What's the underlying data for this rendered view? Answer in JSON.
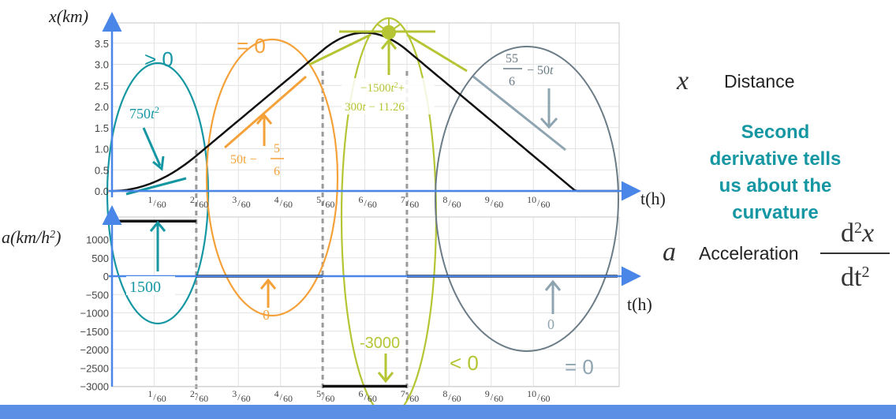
{
  "colors": {
    "axis_blue": "#4a86e8",
    "teal": "#1597a3",
    "orange": "#f5a13a",
    "lime": "#b5c534",
    "slate": "#6b7c86",
    "slate_light": "#8ea4b0",
    "curve": "#111111",
    "grid": "#e3e3e3",
    "dash": "#9a9a9a",
    "bar": "#5b8fe6"
  },
  "chart_data": [
    {
      "type": "line",
      "panel": "top",
      "ylabel": "x(km)",
      "xlabel": "t(h)",
      "ylim": [
        0,
        3.75
      ],
      "xlim": [
        0,
        0.2
      ],
      "y_ticks": [
        "0.0",
        "0.5",
        "1.0",
        "1.5",
        "2.0",
        "2.5",
        "3.0",
        "3.5"
      ],
      "x_ticks": [
        "1/60",
        "2/60",
        "3/60",
        "4/60",
        "5/60",
        "6/60",
        "7/60",
        "8/60",
        "9/60",
        "10/60"
      ],
      "series": [
        {
          "x": [
            0,
            0.005,
            0.01,
            0.0167,
            0.0333,
            0.05,
            0.0667,
            0.0833,
            0.1,
            0.1167,
            0.1333,
            0.15,
            0.1667,
            0.1833,
            0.2
          ],
          "y": [
            0,
            0.019,
            0.075,
            0.208,
            0.833,
            1.667,
            2.5,
            3.333,
            3.75,
            3.333,
            2.5,
            1.667,
            0.833,
            0.417,
            0
          ]
        }
      ],
      "annotations": [
        {
          "text_parts": [
            "750",
            "t",
            "2"
          ],
          "sign": "> 0"
        },
        {
          "text_parts": [
            "50t",
            "−",
            "5",
            "6"
          ],
          "sign": "= 0"
        },
        {
          "text_parts": [
            "−1500",
            "t",
            "2",
            "+",
            "300",
            "t",
            "− 11.26"
          ]
        },
        {
          "text_parts": [
            "55",
            "6",
            "− 50",
            "t"
          ]
        }
      ]
    },
    {
      "type": "line",
      "panel": "bottom",
      "ylabel": "a(km/h2)",
      "xlabel": "t(h)",
      "ylim": [
        -3000,
        1500
      ],
      "xlim": [
        0,
        0.2
      ],
      "y_ticks": [
        "1000",
        "500",
        "0",
        "−500",
        "−1000",
        "−1500",
        "−2000",
        "−2500",
        "−3000"
      ],
      "x_ticks": [
        "1/60",
        "2/60",
        "3/60",
        "4/60",
        "5/60",
        "6/60",
        "7/60",
        "8/60",
        "9/60",
        "10/60"
      ],
      "series": [
        {
          "x": [
            0,
            0.0333,
            0.0333,
            0.0833,
            0.0833,
            0.1167,
            0.1167,
            0.2
          ],
          "y": [
            1500,
            1500,
            0,
            0,
            -3000,
            -3000,
            0,
            0
          ]
        }
      ],
      "annotations": [
        {
          "text": "1500"
        },
        {
          "text": "0"
        },
        {
          "text": "-3000",
          "sign": "< 0"
        },
        {
          "text": "0",
          "sign": "= 0"
        }
      ]
    }
  ],
  "right_panel": {
    "x_symbol": "x",
    "x_label": "Distance",
    "note": "Second derivative tells us about the curvature",
    "a_symbol": "a",
    "a_label": "Acceleration",
    "fraction_top": "d",
    "fraction_bottom": "dt"
  },
  "labels": {
    "x_axis_top": "t(h)",
    "x_axis_bottom": "t(h)"
  }
}
